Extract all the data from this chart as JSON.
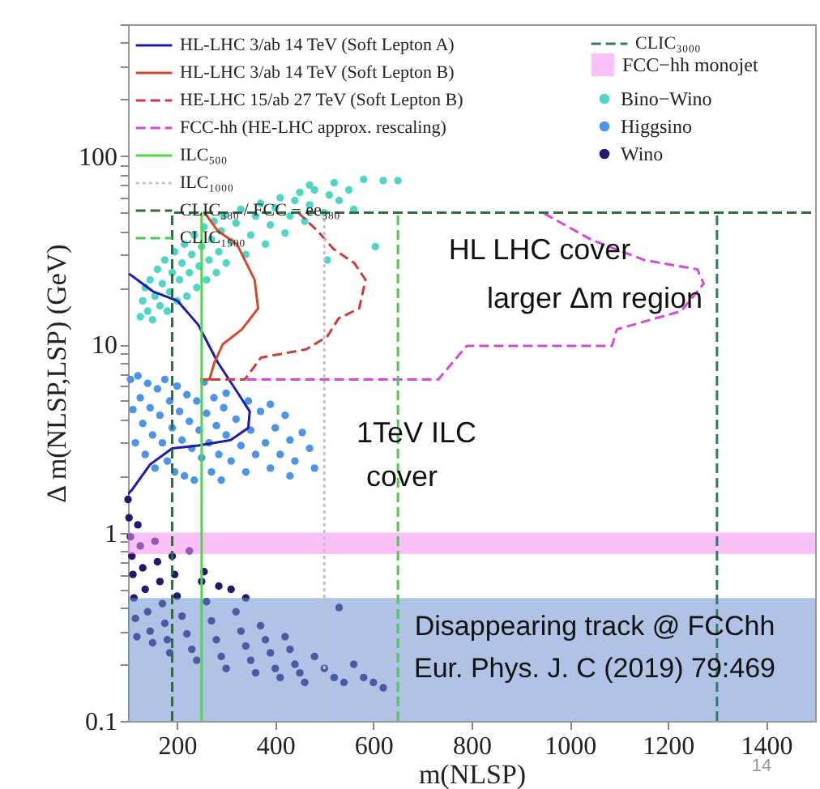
{
  "chart_data": {
    "type": "line",
    "xlabel": "m(NLSP)",
    "ylabel": "Δ m(NLSP,LSP) (GeV)",
    "xlim": [
      100,
      1500
    ],
    "xticks": [
      200,
      400,
      600,
      800,
      1000,
      1200,
      1400
    ],
    "ylim": [
      0.1,
      500
    ],
    "log": "y",
    "yticks": [
      0.1,
      {
        "value": 0.2,
        "label": null
      },
      {
        "value": 0.3,
        "label": null
      },
      {
        "value": 0.4,
        "label": null
      },
      {
        "value": 0.5,
        "label": null
      },
      {
        "value": 0.6,
        "label": null
      },
      {
        "value": 0.7,
        "label": null
      },
      {
        "value": 0.8,
        "label": null
      },
      {
        "value": 0.9,
        "label": null
      },
      1,
      {
        "value": 2,
        "label": null
      },
      {
        "value": 3,
        "label": null
      },
      {
        "value": 4,
        "label": null
      },
      {
        "value": 5,
        "label": null
      },
      {
        "value": 6,
        "label": null
      },
      {
        "value": 7,
        "label": null
      },
      {
        "value": 8,
        "label": null
      },
      {
        "value": 9,
        "label": null
      },
      10,
      {
        "value": 20,
        "label": null
      },
      {
        "value": 30,
        "label": null
      },
      {
        "value": 40,
        "label": null
      },
      {
        "value": 50,
        "label": null
      },
      {
        "value": 60,
        "label": null
      },
      {
        "value": 70,
        "label": null
      },
      {
        "value": 80,
        "label": null
      },
      {
        "value": 90,
        "label": null
      },
      100,
      {
        "value": 200,
        "label": null
      },
      {
        "value": 300,
        "label": null
      },
      {
        "value": 400,
        "label": null
      },
      {
        "value": 500,
        "label": null
      }
    ],
    "grid": false,
    "legend": "top",
    "series": [
      {
        "name": "HL-LHC 3/ab 14 TeV (Soft Lepton A)",
        "line_style": "solid",
        "color": "#1c1ca8",
        "x": [
          102,
          152,
          201,
          243,
          283,
          322,
          348,
          345,
          309,
          243,
          190,
          145,
          109,
          100
        ],
        "values": [
          23.7,
          19,
          17,
          12.7,
          8,
          5.6,
          4.4,
          3.6,
          3.1,
          2.9,
          2.8,
          2.3,
          1.7,
          1.6
        ]
      },
      {
        "name": "HL-LHC 3/ab 14 TeV (Soft Lepton B)",
        "line_style": "solid",
        "color": "#d24a2a",
        "x": [
          256,
          283,
          322,
          338,
          358,
          365,
          332,
          293,
          276,
          266,
          247
        ],
        "values": [
          50,
          40,
          34,
          28,
          22,
          15.5,
          12,
          10,
          8,
          6.5,
          6.5
        ]
      },
      {
        "name": "HE-LHC 15/ab 27 TeV (Soft Lepton B)",
        "line_style": "dashed",
        "color": "#d03a3a",
        "x": [
          447,
          486,
          519,
          561,
          584,
          571,
          529,
          506,
          463,
          371,
          338,
          257
        ],
        "values": [
          50,
          40,
          32,
          27,
          22,
          15.5,
          13.7,
          11,
          9.4,
          8.5,
          6.5,
          6.5
        ]
      },
      {
        "name": "FCC-hh (HE-LHC approx. rescaling)",
        "line_style": "dashed",
        "color": "#d848d8",
        "x": [
          342,
          732,
          790,
          1086,
          1096,
          1227,
          1273,
          1260,
          1152,
          1043,
          945
        ],
        "values": [
          6.5,
          6.5,
          9.8,
          9.8,
          12,
          15,
          21,
          25,
          28,
          36,
          50
        ]
      },
      {
        "name": "ILC₅₀₀",
        "line_style": "solid",
        "color": "#4cd84c",
        "x": [
          250,
          250
        ],
        "values": [
          0.1,
          50
        ]
      },
      {
        "name": "ILC₁₀₀₀",
        "line_style": "dotted",
        "color": "#c4c4c4",
        "x": [
          500,
          500
        ],
        "values": [
          0.1,
          50
        ]
      },
      {
        "name": "CLIC₃₈₀ / FCC − ee₃₈₀",
        "line_style": "dashed",
        "color": "#2e6e3e",
        "x": [
          190,
          190,
          1500
        ],
        "values": [
          0.1,
          50,
          50
        ]
      },
      {
        "name": "CLIC₁₅₀₀",
        "line_style": "dashed",
        "color": "#50c850",
        "x": [
          650,
          650
        ],
        "values": [
          0.1,
          50
        ]
      },
      {
        "name": "CLIC₃₀₀₀",
        "line_style": "dashed",
        "color": "#2e7a6a",
        "x": [
          1300,
          1300
        ],
        "values": [
          0.1,
          50
        ]
      },
      {
        "name": "Bino−Wino",
        "type": "scatter",
        "marker": "circle",
        "color": "#4fd6c6",
        "x": [
          125,
          130,
          135,
          140,
          145,
          150,
          155,
          160,
          165,
          170,
          175,
          180,
          185,
          190,
          195,
          200,
          205,
          210,
          215,
          220,
          225,
          230,
          235,
          240,
          245,
          250,
          255,
          260,
          265,
          270,
          275,
          280,
          285,
          290,
          295,
          300,
          310,
          320,
          330,
          340,
          350,
          360,
          370,
          380,
          390,
          400,
          410,
          420,
          430,
          440,
          450,
          460,
          470,
          480,
          500,
          510,
          530,
          550,
          560,
          506,
          604,
          580,
          620,
          650,
          470,
          520
        ],
        "values": [
          14,
          17,
          20,
          15,
          22,
          13.5,
          18,
          25,
          16,
          21,
          28,
          15,
          19,
          24,
          31,
          17,
          22,
          27,
          34,
          18,
          24,
          30,
          38,
          20,
          26,
          33,
          42,
          22,
          28,
          36,
          45,
          24,
          31,
          40,
          48,
          27,
          35,
          44,
          52,
          30,
          38,
          48,
          56,
          34,
          43,
          53,
          60,
          39,
          48,
          58,
          64,
          45,
          55,
          66,
          50,
          62,
          58,
          66,
          52,
          28,
          33,
          75,
          74,
          74,
          70,
          72
        ]
      },
      {
        "name": "Higgsino",
        "type": "scatter",
        "marker": "circle",
        "color": "#4a94ea",
        "x": [
          105,
          110,
          115,
          120,
          125,
          130,
          135,
          140,
          145,
          150,
          155,
          160,
          165,
          170,
          175,
          180,
          185,
          190,
          195,
          200,
          205,
          210,
          215,
          220,
          225,
          230,
          235,
          240,
          245,
          250,
          255,
          260,
          265,
          270,
          275,
          280,
          285,
          290,
          295,
          300,
          310,
          320,
          330,
          340,
          350,
          360,
          370,
          380,
          390,
          400,
          410,
          420,
          430,
          440,
          455,
          470,
          480,
          345,
          300,
          390,
          430
        ],
        "values": [
          6.5,
          4.5,
          3,
          6.8,
          5.2,
          3.8,
          2.6,
          6.2,
          4.6,
          3.3,
          2.2,
          5.8,
          4.2,
          3,
          6.5,
          2.4,
          5,
          3.6,
          2.1,
          6,
          4.4,
          3.1,
          2,
          5.4,
          3.9,
          2.8,
          1.9,
          5,
          3.5,
          2.5,
          6.3,
          4.3,
          3,
          2.1,
          5.2,
          3.7,
          2.6,
          1.9,
          4.6,
          3.3,
          2.4,
          4,
          2.9,
          2.1,
          3.5,
          2.6,
          4.4,
          3,
          2.2,
          3.6,
          2.6,
          4.2,
          3.1,
          2.4,
          3.4,
          2.8,
          2.2,
          5,
          5.5,
          4.8,
          2
        ]
      },
      {
        "name": "Wino",
        "type": "scatter",
        "marker": "circle",
        "color": "#1e1a6e",
        "x": [
          100,
          102,
          105,
          108,
          110,
          112,
          115,
          118,
          120,
          125,
          130,
          135,
          140,
          145,
          150,
          155,
          160,
          165,
          170,
          175,
          180,
          185,
          190,
          195,
          200,
          210,
          220,
          230,
          240,
          250,
          255,
          260,
          270,
          280,
          290,
          300,
          310,
          320,
          330,
          340,
          350,
          360,
          370,
          380,
          390,
          400,
          410,
          420,
          430,
          440,
          450,
          460,
          480,
          500,
          520,
          540,
          560,
          580,
          600,
          620,
          340,
          530,
          285,
          225
        ],
        "values": [
          1.5,
          1.2,
          0.95,
          0.75,
          0.6,
          0.45,
          0.35,
          0.28,
          1.1,
          0.85,
          0.65,
          0.5,
          0.38,
          0.3,
          0.26,
          0.9,
          0.7,
          0.55,
          0.42,
          0.33,
          0.27,
          0.23,
          0.75,
          0.6,
          0.46,
          0.36,
          0.29,
          0.24,
          0.21,
          0.55,
          0.62,
          0.43,
          0.34,
          0.27,
          0.22,
          0.19,
          0.5,
          0.38,
          0.3,
          0.25,
          0.21,
          0.18,
          0.32,
          0.27,
          0.23,
          0.19,
          0.17,
          0.28,
          0.24,
          0.2,
          0.18,
          0.16,
          0.22,
          0.19,
          0.17,
          0.16,
          0.2,
          0.17,
          0.16,
          0.15,
          0.45,
          0.4,
          0.52,
          0.8
        ]
      }
    ],
    "bands": [
      {
        "axis": "y",
        "from": 0.1,
        "to": 0.45,
        "color": "#6f8fd0"
      },
      {
        "axis": "y",
        "from": 0.77,
        "to": 1.0,
        "label": "FCC−hh monojet",
        "color": "#f58ef0"
      }
    ],
    "annotations": [
      "HL LHC cover",
      "larger Δm region",
      "1TeV ILC",
      "cover",
      "Disappearing track @ FCChh",
      "Eur. Phys. J. C (2019) 79:469",
      "14"
    ]
  }
}
